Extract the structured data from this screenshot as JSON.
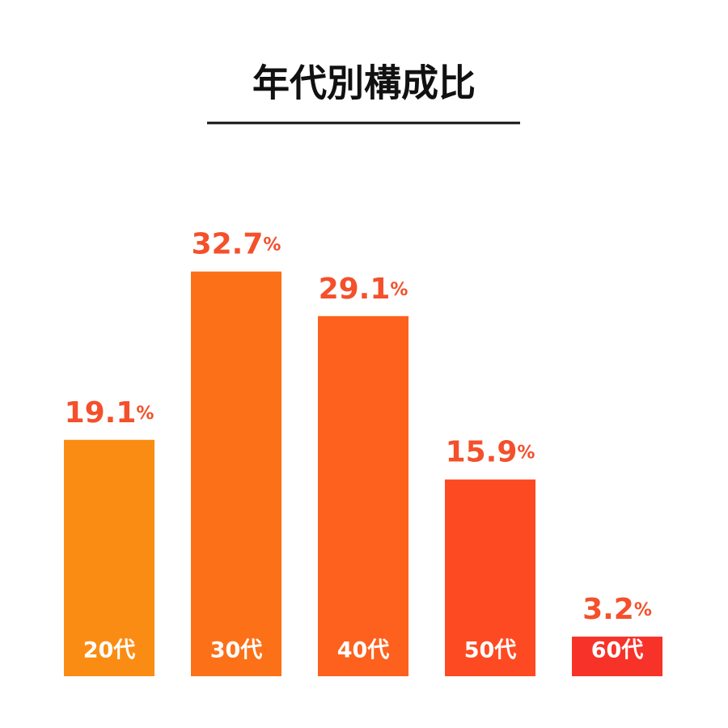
{
  "chart_data": {
    "type": "bar",
    "title": "年代別構成比",
    "categories": [
      "20代",
      "30代",
      "40代",
      "50代",
      "60代"
    ],
    "values": [
      19.1,
      32.7,
      29.1,
      15.9,
      3.2
    ],
    "value_labels": [
      "19.1%",
      "32.7%",
      "29.1%",
      "15.9%",
      "3.2%"
    ],
    "colors": [
      "#fb8c13",
      "#fc7118",
      "#fd611d",
      "#fe4a22",
      "#f73329"
    ],
    "label_color": "#f4502b"
  }
}
